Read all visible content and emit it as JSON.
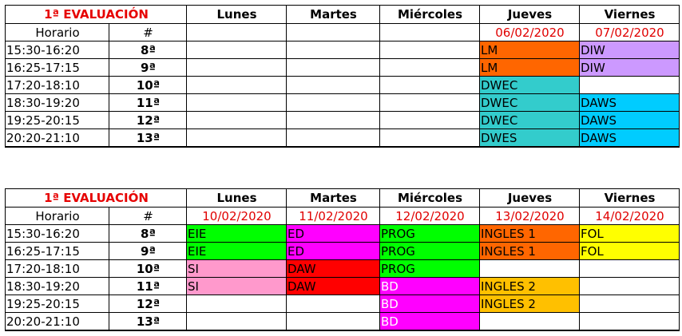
{
  "week1": {
    "title": "1ª EVALUACIÓN",
    "days": [
      "Lunes",
      "Martes",
      "Miércoles",
      "Jueves",
      "Viernes"
    ],
    "header2": {
      "horario": "Horario",
      "num": "#"
    },
    "dates": [
      "",
      "",
      "",
      "06/02/2020",
      "07/02/2020"
    ],
    "rows": [
      {
        "time": "15:30-16:20",
        "num": "8ª",
        "cells": [
          {
            "t": "",
            "c": ""
          },
          {
            "t": "",
            "c": ""
          },
          {
            "t": "",
            "c": ""
          },
          {
            "t": "LM",
            "c": "#ff6600"
          },
          {
            "t": "DIW",
            "c": "#cc99ff"
          }
        ]
      },
      {
        "time": "16:25-17:15",
        "num": "9ª",
        "cells": [
          {
            "t": "",
            "c": ""
          },
          {
            "t": "",
            "c": ""
          },
          {
            "t": "",
            "c": ""
          },
          {
            "t": "LM",
            "c": "#ff6600"
          },
          {
            "t": "DIW",
            "c": "#cc99ff"
          }
        ]
      },
      {
        "time": "17:20-18:10",
        "num": "10ª",
        "cells": [
          {
            "t": "",
            "c": ""
          },
          {
            "t": "",
            "c": ""
          },
          {
            "t": "",
            "c": ""
          },
          {
            "t": "DWEC",
            "c": "#33cccc"
          },
          {
            "t": "",
            "c": ""
          }
        ]
      },
      {
        "time": "18:30-19:20",
        "num": "11ª",
        "cells": [
          {
            "t": "",
            "c": ""
          },
          {
            "t": "",
            "c": ""
          },
          {
            "t": "",
            "c": ""
          },
          {
            "t": "DWEC",
            "c": "#33cccc"
          },
          {
            "t": "DAWS",
            "c": "#00ccff"
          }
        ]
      },
      {
        "time": "19:25-20:15",
        "num": "12ª",
        "cells": [
          {
            "t": "",
            "c": ""
          },
          {
            "t": "",
            "c": ""
          },
          {
            "t": "",
            "c": ""
          },
          {
            "t": "DWEC",
            "c": "#33cccc"
          },
          {
            "t": "DAWS",
            "c": "#00ccff"
          }
        ]
      },
      {
        "time": "20:20-21:10",
        "num": "13ª",
        "cells": [
          {
            "t": "",
            "c": ""
          },
          {
            "t": "",
            "c": ""
          },
          {
            "t": "",
            "c": ""
          },
          {
            "t": "DWES",
            "c": "#33cccc"
          },
          {
            "t": "DAWS",
            "c": "#00ccff"
          }
        ]
      }
    ]
  },
  "week2": {
    "title": "1ª EVALUACIÓN",
    "days": [
      "Lunes",
      "Martes",
      "Miércoles",
      "Jueves",
      "Viernes"
    ],
    "header2": {
      "horario": "Horario",
      "num": "#"
    },
    "dates": [
      "10/02/2020",
      "11/02/2020",
      "12/02/2020",
      "13/02/2020",
      "14/02/2020"
    ],
    "rows": [
      {
        "time": "15:30-16:20",
        "num": "8ª",
        "cells": [
          {
            "t": "EIE",
            "c": "#00ff00"
          },
          {
            "t": "ED",
            "c": "#ff00ff"
          },
          {
            "t": "PROG",
            "c": "#00ff00"
          },
          {
            "t": "INGLES 1",
            "c": "#ff6600"
          },
          {
            "t": "FOL",
            "c": "#ffff00"
          }
        ]
      },
      {
        "time": "16:25-17:15",
        "num": "9ª",
        "cells": [
          {
            "t": "EIE",
            "c": "#00ff00"
          },
          {
            "t": "ED",
            "c": "#ff00ff"
          },
          {
            "t": "PROG",
            "c": "#00ff00"
          },
          {
            "t": "INGLES 1",
            "c": "#ff6600"
          },
          {
            "t": "FOL",
            "c": "#ffff00"
          }
        ]
      },
      {
        "time": "17:20-18:10",
        "num": "10ª",
        "cells": [
          {
            "t": "SI",
            "c": "#ff99cc"
          },
          {
            "t": "DAW",
            "c": "#ff0000"
          },
          {
            "t": "PROG",
            "c": "#00ff00"
          },
          {
            "t": "",
            "c": ""
          },
          {
            "t": "",
            "c": ""
          }
        ]
      },
      {
        "time": "18:30-19:20",
        "num": "11ª",
        "cells": [
          {
            "t": "SI",
            "c": "#ff99cc"
          },
          {
            "t": "DAW",
            "c": "#ff0000"
          },
          {
            "t": "BD",
            "c": "#ff00ff"
          },
          {
            "t": "INGLES 2",
            "c": "#ffc000"
          },
          {
            "t": "",
            "c": ""
          }
        ]
      },
      {
        "time": "19:25-20:15",
        "num": "12ª",
        "cells": [
          {
            "t": "",
            "c": ""
          },
          {
            "t": "",
            "c": ""
          },
          {
            "t": "BD",
            "c": "#ff00ff"
          },
          {
            "t": "INGLES 2",
            "c": "#ffc000"
          },
          {
            "t": "",
            "c": ""
          }
        ]
      },
      {
        "time": "20:20-21:10",
        "num": "13ª",
        "cells": [
          {
            "t": "",
            "c": ""
          },
          {
            "t": "",
            "c": ""
          },
          {
            "t": "BD",
            "c": "#ff00ff"
          },
          {
            "t": "",
            "c": ""
          },
          {
            "t": "",
            "c": ""
          }
        ]
      }
    ]
  }
}
